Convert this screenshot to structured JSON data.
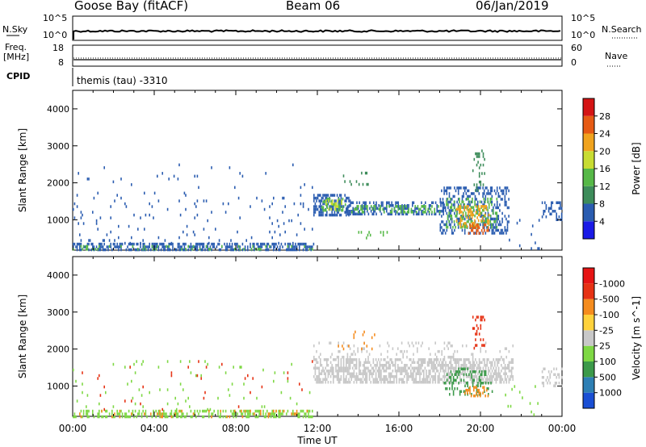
{
  "header": {
    "station": "Goose Bay (fitACF)",
    "beam": "Beam 06",
    "date": "06/Jan/2019"
  },
  "nsky_panel": {
    "left_label": "N.Sky",
    "left_ticks": [
      "10^5",
      "10^0"
    ],
    "right_label": "N.Search",
    "right_ticks": [
      "10^5",
      "10^0"
    ]
  },
  "freq_panel": {
    "left_label_1": "Freq.",
    "left_label_2": "[MHz]",
    "left_ticks": [
      "18",
      "8"
    ],
    "right_label": "Nave",
    "right_ticks": [
      "60",
      "0"
    ]
  },
  "cpid_panel": {
    "label": "CPID",
    "text": "themis (tau) -3310"
  },
  "chart_data": [
    {
      "type": "heatmap",
      "name": "power",
      "xlabel": "Time UT",
      "ylabel": "Slant Range [km]",
      "ylim": [
        180,
        4500
      ],
      "y_ticks": [
        1000,
        2000,
        3000,
        4000
      ],
      "xlim": [
        0,
        24
      ],
      "x_ticks": [
        "00:00",
        "04:00",
        "08:00",
        "12:00",
        "16:00",
        "20:00",
        "00:00"
      ],
      "colorbar": {
        "label": "Power [dB]",
        "ticks": [
          "4",
          "8",
          "12",
          "16",
          "20",
          "24",
          "28"
        ],
        "colors": [
          "#1a1ae6",
          "#2a5cb0",
          "#3d8c5a",
          "#56b847",
          "#c8dc32",
          "#f0a31e",
          "#e65a14",
          "#d41414"
        ]
      },
      "regions": [
        {
          "t0": 0.0,
          "t1": 11.8,
          "r0": 200,
          "r1": 380,
          "color": "#2a5cb0",
          "density": 0.55
        },
        {
          "t0": 0.0,
          "t1": 11.8,
          "r0": 200,
          "r1": 320,
          "color": "#56b847",
          "density": 0.12
        },
        {
          "t0": 0.0,
          "t1": 11.8,
          "r0": 400,
          "r1": 1700,
          "color": "#2a5cb0",
          "density": 0.035
        },
        {
          "t0": 0.0,
          "t1": 11.8,
          "r0": 1700,
          "r1": 2600,
          "color": "#2a5cb0",
          "density": 0.01
        },
        {
          "t0": 11.8,
          "t1": 13.6,
          "r0": 1150,
          "r1": 1700,
          "color": "#2a5cb0",
          "density": 0.5
        },
        {
          "t0": 12.2,
          "t1": 13.4,
          "r0": 1250,
          "r1": 1600,
          "color": "#56b847",
          "density": 0.35
        },
        {
          "t0": 12.4,
          "t1": 13.2,
          "r0": 1300,
          "r1": 1550,
          "color": "#c8dc32",
          "density": 0.3
        },
        {
          "t0": 13.4,
          "t1": 18.2,
          "r0": 1150,
          "r1": 1500,
          "color": "#2a5cb0",
          "density": 0.45
        },
        {
          "t0": 13.6,
          "t1": 18.0,
          "r0": 1200,
          "r1": 1400,
          "color": "#56b847",
          "density": 0.35
        },
        {
          "t0": 18.0,
          "t1": 21.4,
          "r0": 650,
          "r1": 1900,
          "color": "#2a5cb0",
          "density": 0.35
        },
        {
          "t0": 18.3,
          "t1": 20.8,
          "r0": 800,
          "r1": 1600,
          "color": "#56b847",
          "density": 0.3
        },
        {
          "t0": 18.8,
          "t1": 20.4,
          "r0": 850,
          "r1": 1400,
          "color": "#f0a31e",
          "density": 0.35
        },
        {
          "t0": 19.4,
          "t1": 20.4,
          "r0": 650,
          "r1": 900,
          "color": "#e65a14",
          "density": 0.5
        },
        {
          "t0": 19.6,
          "t1": 20.2,
          "r0": 1800,
          "r1": 2900,
          "color": "#3d8c5a",
          "density": 0.2
        },
        {
          "t0": 13.0,
          "t1": 14.8,
          "r0": 1900,
          "r1": 2300,
          "color": "#3d8c5a",
          "density": 0.08
        },
        {
          "t0": 14.0,
          "t1": 15.5,
          "r0": 500,
          "r1": 700,
          "color": "#56b847",
          "density": 0.15
        },
        {
          "t0": 21.2,
          "t1": 23.0,
          "r0": 250,
          "r1": 1100,
          "color": "#2a5cb0",
          "density": 0.04
        },
        {
          "t0": 23.0,
          "t1": 24.0,
          "r0": 1000,
          "r1": 1500,
          "color": "#2a5cb0",
          "density": 0.3
        }
      ]
    },
    {
      "type": "heatmap",
      "name": "velocity",
      "xlabel": "Time UT",
      "ylabel": "Slant Range [km]",
      "ylim": [
        180,
        4500
      ],
      "y_ticks": [
        1000,
        2000,
        3000,
        4000
      ],
      "xlim": [
        0,
        24
      ],
      "x_ticks": [
        "00:00",
        "04:00",
        "08:00",
        "12:00",
        "16:00",
        "20:00",
        "00:00"
      ],
      "colorbar": {
        "label": "Velocity [m s^-1]",
        "ticks": [
          "1000",
          "500",
          "100",
          "25",
          "-25",
          "-100",
          "-500",
          "-1000"
        ],
        "colors": [
          "#1a4fd4",
          "#2e7fb4",
          "#3c9a4a",
          "#7ed844",
          "#c8c8c8",
          "#ffd23c",
          "#f58c1e",
          "#e63214",
          "#e61414"
        ]
      },
      "regions": [
        {
          "t0": 0.0,
          "t1": 11.8,
          "r0": 200,
          "r1": 360,
          "color": "#7ed844",
          "density": 0.4
        },
        {
          "t0": 0.0,
          "t1": 11.8,
          "r0": 200,
          "r1": 360,
          "color": "#f58c1e",
          "density": 0.08
        },
        {
          "t0": 0.0,
          "t1": 11.8,
          "r0": 400,
          "r1": 1700,
          "color": "#7ed844",
          "density": 0.02
        },
        {
          "t0": 0.0,
          "t1": 11.8,
          "r0": 400,
          "r1": 1700,
          "color": "#e63214",
          "density": 0.012
        },
        {
          "t0": 11.8,
          "t1": 21.6,
          "r0": 1100,
          "r1": 1750,
          "color": "#c8c8c8",
          "density": 0.6
        },
        {
          "t0": 11.8,
          "t1": 21.6,
          "r0": 1750,
          "r1": 2200,
          "color": "#c8c8c8",
          "density": 0.12
        },
        {
          "t0": 18.2,
          "t1": 20.6,
          "r0": 800,
          "r1": 1500,
          "color": "#3c9a4a",
          "density": 0.25
        },
        {
          "t0": 19.2,
          "t1": 20.4,
          "r0": 700,
          "r1": 1000,
          "color": "#f58c1e",
          "density": 0.35
        },
        {
          "t0": 19.6,
          "t1": 20.2,
          "r0": 2000,
          "r1": 2900,
          "color": "#e63214",
          "density": 0.25
        },
        {
          "t0": 13.0,
          "t1": 14.8,
          "r0": 2000,
          "r1": 2500,
          "color": "#f58c1e",
          "density": 0.08
        },
        {
          "t0": 21.2,
          "t1": 23.0,
          "r0": 250,
          "r1": 1100,
          "color": "#7ed844",
          "density": 0.03
        },
        {
          "t0": 23.0,
          "t1": 24.0,
          "r0": 1000,
          "r1": 1500,
          "color": "#c8c8c8",
          "density": 0.3
        }
      ]
    }
  ]
}
